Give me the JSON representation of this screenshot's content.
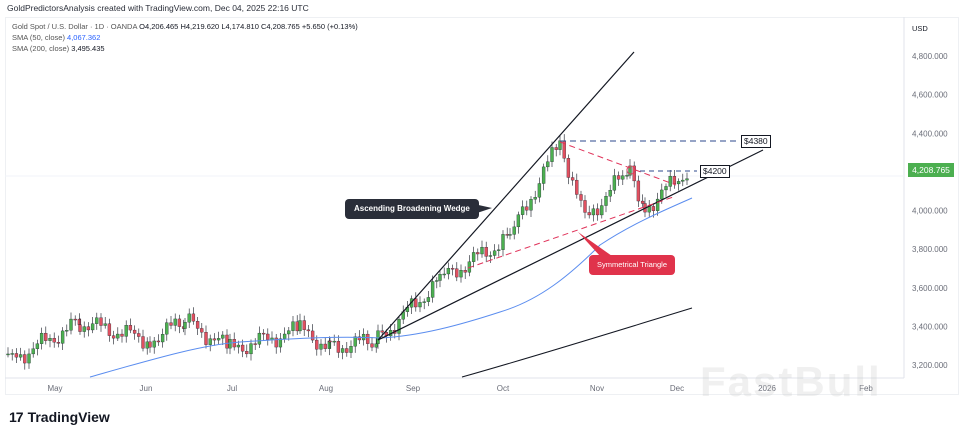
{
  "header": {
    "credit": "GoldPredictorsAnalysis created with TradingView.com, Dec 04, 2025 22:16 UTC"
  },
  "legend": {
    "symbol": "Gold Spot / U.S. Dollar · 1D · OANDA",
    "open": "O4,206.465",
    "high": "H4,219.620",
    "low": "L4,174.810",
    "close": "C4,208.765",
    "change": "+5.650 (+0.13%)",
    "sma50_label": "SMA (50, close)",
    "sma50_value": "4,067.362",
    "sma200_label": "SMA (200, close)",
    "sma200_value": "3,495.435"
  },
  "axis": {
    "currency": "USD",
    "last_price": "4,208.765",
    "last_price_color": "#4caf50"
  },
  "annotations": {
    "wedge_label": "Ascending Broadening Wedge",
    "triangle_label": "Symmetrical Triangle",
    "target_high": "$4380",
    "target_level": "$4200"
  },
  "branding": {
    "logo_mark": "17",
    "logo_name": "TradingView",
    "watermark": "FastBull"
  },
  "chart_data": {
    "type": "candlestick",
    "title": "Gold Spot / U.S. Dollar · 1D · OANDA",
    "ylabel": "USD",
    "ylim": [
      3130,
      4960
    ],
    "y_ticks": [
      3200,
      3400,
      3600,
      3800,
      4000,
      4200,
      4400,
      4600,
      4800
    ],
    "y_tick_labels": [
      "3,200.000",
      "3,400.000",
      "3,600.000",
      "3,800.000",
      "4,000.000",
      "4,200.000",
      "4,400.000",
      "4,600.000",
      "4,800.000"
    ],
    "x_tick_labels": [
      "May",
      "Jun",
      "Jul",
      "Aug",
      "Sep",
      "Oct",
      "Nov",
      "Dec",
      "2026",
      "Feb"
    ],
    "last_close": 4208.765,
    "ohlc_last": {
      "open": 4206.465,
      "high": 4219.62,
      "low": 4174.81,
      "close": 4208.765,
      "change": 5.65,
      "change_pct": 0.13
    },
    "series": [
      {
        "name": "SMA (50, close)",
        "color": "#2962ff",
        "last": 4067.362,
        "approx_path": [
          [
            3180,
            "May-mid"
          ],
          [
            3300,
            "Jul"
          ],
          [
            3340,
            "Aug"
          ],
          [
            3370,
            "Sep"
          ],
          [
            3600,
            "Oct"
          ],
          [
            3850,
            "Nov"
          ],
          [
            4067,
            "Dec"
          ]
        ]
      },
      {
        "name": "SMA (200, close)",
        "color": "#131722",
        "last": 3495.435,
        "approx_path": [
          [
            3130,
            "Sep-end"
          ],
          [
            3300,
            "Oct-end"
          ],
          [
            3495,
            "Dec"
          ]
        ]
      }
    ],
    "price_path_approx": [
      {
        "period": "May",
        "range": [
          3200,
          3500
        ]
      },
      {
        "period": "Jun",
        "range": [
          3250,
          3450
        ]
      },
      {
        "period": "Jul",
        "range": [
          3270,
          3440
        ]
      },
      {
        "period": "Aug",
        "range": [
          3300,
          3420
        ]
      },
      {
        "period": "Sep",
        "range": [
          3330,
          3850
        ]
      },
      {
        "period": "Oct",
        "range": [
          3850,
          4380
        ]
      },
      {
        "period": "Nov",
        "range": [
          3930,
          4250
        ]
      },
      {
        "period": "Dec",
        "range": [
          4170,
          4220
        ]
      }
    ],
    "drawings": [
      {
        "type": "trendline",
        "label": "Ascending Broadening Wedge upper"
      },
      {
        "type": "trendline",
        "label": "Ascending Broadening Wedge lower"
      },
      {
        "type": "dashed-line",
        "label": "Symmetrical Triangle upper",
        "color": "#e0334b"
      },
      {
        "type": "dashed-line",
        "label": "Symmetrical Triangle lower",
        "color": "#e0334b"
      },
      {
        "type": "horizontal-dashed",
        "value": 4380,
        "label": "$4380",
        "color": "#2962ff"
      },
      {
        "type": "horizontal-dashed",
        "value": 4200,
        "label": "$4200",
        "color": "#2962ff"
      }
    ],
    "grid": true,
    "legend_position": "top-left"
  }
}
